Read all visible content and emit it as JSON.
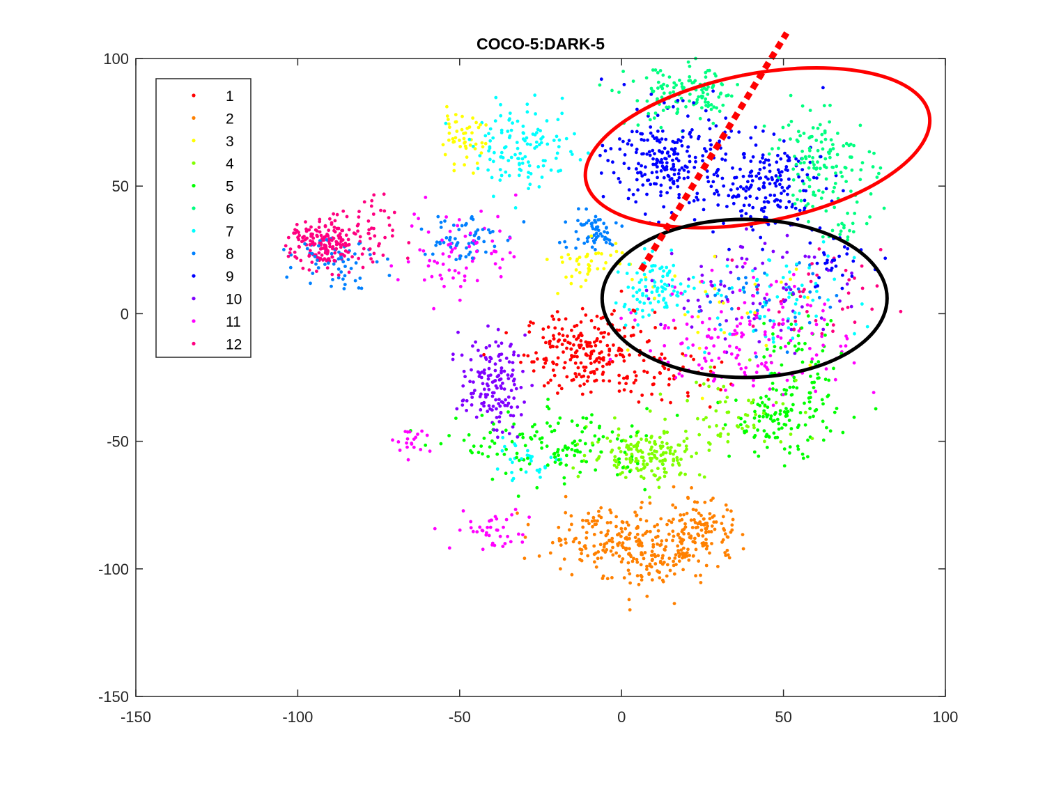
{
  "chart_data": {
    "type": "scatter",
    "title": "COCO-5:DARK-5",
    "xlabel": "",
    "ylabel": "",
    "xlim": [
      -150,
      100
    ],
    "ylim": [
      -150,
      100
    ],
    "xticks": [
      -150,
      -100,
      -50,
      0,
      50,
      100
    ],
    "yticks": [
      -150,
      -100,
      -50,
      0,
      50,
      100
    ],
    "xtick_labels": [
      "-150",
      "-100",
      "-50",
      "0",
      "50",
      "100"
    ],
    "ytick_labels": [
      "-150",
      "-100",
      "-50",
      "0",
      "50",
      "100"
    ],
    "grid": false,
    "legend_position": "top-left",
    "series": [
      {
        "name": "1",
        "color": "#ff0000",
        "clusters": [
          {
            "cx": -10,
            "cy": -15,
            "sx": 10,
            "sy": 8,
            "n": 230
          },
          {
            "cx": 15,
            "cy": -25,
            "sx": 8,
            "sy": 6,
            "n": 40
          }
        ]
      },
      {
        "name": "2",
        "color": "#ff8000",
        "clusters": [
          {
            "cx": -5,
            "cy": -88,
            "sx": 10,
            "sy": 6,
            "n": 150
          },
          {
            "cx": 12,
            "cy": -95,
            "sx": 8,
            "sy": 7,
            "n": 130
          },
          {
            "cx": 25,
            "cy": -85,
            "sx": 6,
            "sy": 6,
            "n": 100
          }
        ]
      },
      {
        "name": "3",
        "color": "#ffff00",
        "clusters": [
          {
            "cx": -50,
            "cy": 68,
            "sx": 4,
            "sy": 5,
            "n": 50
          },
          {
            "cx": -10,
            "cy": 20,
            "sx": 6,
            "sy": 5,
            "n": 40
          },
          {
            "cx": 30,
            "cy": 0,
            "sx": 15,
            "sy": 10,
            "n": 30
          }
        ]
      },
      {
        "name": "4",
        "color": "#80ff00",
        "clusters": [
          {
            "cx": 8,
            "cy": -55,
            "sx": 9,
            "sy": 5,
            "n": 160
          },
          {
            "cx": 35,
            "cy": -40,
            "sx": 14,
            "sy": 8,
            "n": 60
          }
        ]
      },
      {
        "name": "5",
        "color": "#00ff00",
        "clusters": [
          {
            "cx": -20,
            "cy": -52,
            "sx": 15,
            "sy": 7,
            "n": 140
          },
          {
            "cx": 50,
            "cy": -40,
            "sx": 8,
            "sy": 8,
            "n": 130
          },
          {
            "cx": 55,
            "cy": -15,
            "sx": 8,
            "sy": 8,
            "n": 40
          }
        ]
      },
      {
        "name": "6",
        "color": "#00ff80",
        "clusters": [
          {
            "cx": 20,
            "cy": 85,
            "sx": 9,
            "sy": 6,
            "n": 130
          },
          {
            "cx": 62,
            "cy": 60,
            "sx": 8,
            "sy": 9,
            "n": 130
          },
          {
            "cx": 70,
            "cy": 35,
            "sx": 4,
            "sy": 4,
            "n": 20
          }
        ]
      },
      {
        "name": "7",
        "color": "#00ffff",
        "clusters": [
          {
            "cx": -30,
            "cy": 65,
            "sx": 8,
            "sy": 8,
            "n": 120
          },
          {
            "cx": 10,
            "cy": 10,
            "sx": 6,
            "sy": 6,
            "n": 90
          },
          {
            "cx": 45,
            "cy": 5,
            "sx": 14,
            "sy": 10,
            "n": 70
          },
          {
            "cx": -30,
            "cy": -58,
            "sx": 6,
            "sy": 4,
            "n": 30
          }
        ]
      },
      {
        "name": "8",
        "color": "#0080ff",
        "clusters": [
          {
            "cx": -88,
            "cy": 22,
            "sx": 6,
            "sy": 6,
            "n": 60
          },
          {
            "cx": -50,
            "cy": 30,
            "sx": 6,
            "sy": 5,
            "n": 60
          },
          {
            "cx": -10,
            "cy": 32,
            "sx": 5,
            "sy": 4,
            "n": 60
          },
          {
            "cx": 45,
            "cy": 5,
            "sx": 10,
            "sy": 8,
            "n": 40
          }
        ]
      },
      {
        "name": "9",
        "color": "#0000ff",
        "clusters": [
          {
            "cx": 15,
            "cy": 60,
            "sx": 9,
            "sy": 10,
            "n": 230
          },
          {
            "cx": 45,
            "cy": 50,
            "sx": 9,
            "sy": 9,
            "n": 180
          },
          {
            "cx": 65,
            "cy": 20,
            "sx": 6,
            "sy": 5,
            "n": 30
          }
        ]
      },
      {
        "name": "10",
        "color": "#8000ff",
        "clusters": [
          {
            "cx": -40,
            "cy": -28,
            "sx": 5,
            "sy": 9,
            "n": 150
          },
          {
            "cx": 40,
            "cy": 10,
            "sx": 14,
            "sy": 12,
            "n": 80
          }
        ]
      },
      {
        "name": "11",
        "color": "#ff00ff",
        "clusters": [
          {
            "cx": -50,
            "cy": 25,
            "sx": 9,
            "sy": 9,
            "n": 70
          },
          {
            "cx": 40,
            "cy": -10,
            "sx": 16,
            "sy": 12,
            "n": 150
          },
          {
            "cx": -40,
            "cy": -85,
            "sx": 6,
            "sy": 4,
            "n": 40
          },
          {
            "cx": -65,
            "cy": -50,
            "sx": 3,
            "sy": 3,
            "n": 20
          }
        ]
      },
      {
        "name": "12",
        "color": "#ff0080",
        "clusters": [
          {
            "cx": -92,
            "cy": 27,
            "sx": 5,
            "sy": 5,
            "n": 170
          },
          {
            "cx": -80,
            "cy": 30,
            "sx": 5,
            "sy": 8,
            "n": 50
          },
          {
            "cx": 60,
            "cy": 5,
            "sx": 10,
            "sy": 10,
            "n": 40
          }
        ]
      }
    ],
    "annotations": [
      {
        "shape": "ellipse",
        "color": "#ff0000",
        "cx": 42,
        "cy": 65,
        "rx": 54,
        "ry": 29,
        "rotation_deg": -11
      },
      {
        "shape": "ellipse",
        "color": "#000000",
        "cx": 38,
        "cy": 6,
        "rx": 44,
        "ry": 31,
        "rotation_deg": 0
      },
      {
        "shape": "dotted-line",
        "color": "#ff0000",
        "x1": 6,
        "y1": 17,
        "x2": 51,
        "y2": 110
      }
    ]
  }
}
